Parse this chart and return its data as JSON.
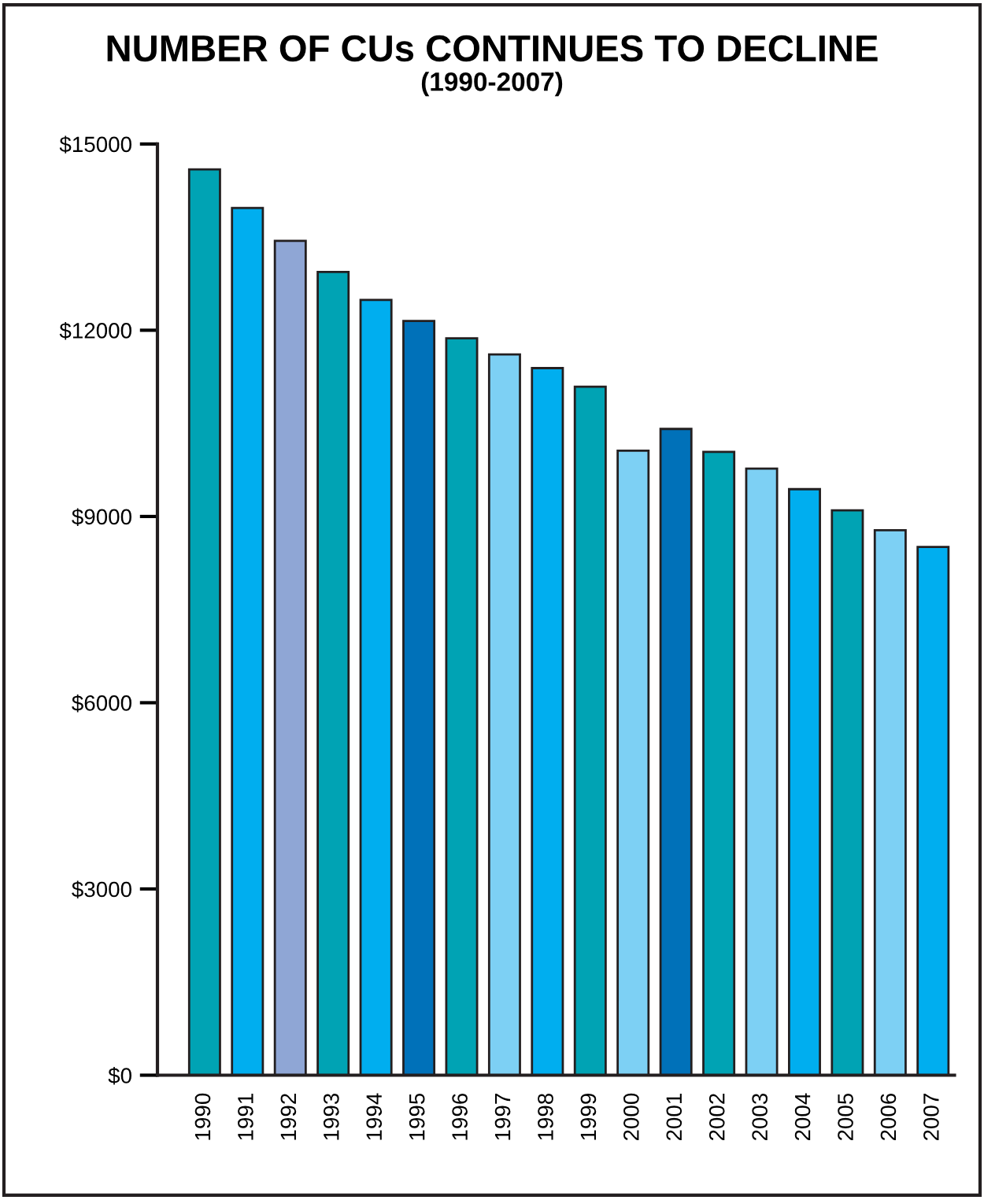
{
  "chart_data": {
    "type": "bar",
    "title": "NUMBER OF CUs CONTINUES TO DECLINE",
    "subtitle": "(1990-2007)",
    "categories": [
      "1990",
      "1991",
      "1992",
      "1993",
      "1994",
      "1995",
      "1996",
      "1997",
      "1998",
      "1999",
      "2000",
      "2001",
      "2002",
      "2003",
      "2004",
      "2005",
      "2006",
      "2007"
    ],
    "values": [
      14590,
      13970,
      13440,
      12940,
      12490,
      12150,
      11870,
      11610,
      11390,
      11090,
      10060,
      10410,
      10040,
      9770,
      9440,
      9100,
      8780,
      8510
    ],
    "colors": [
      "#00a3b4",
      "#00aeef",
      "#8fa6d5",
      "#00a3b4",
      "#00aeef",
      "#0071b9",
      "#00a3b4",
      "#7dd0f4",
      "#00aeef",
      "#00a3b4",
      "#7dd0f4",
      "#0071b9",
      "#00a3b4",
      "#7dd0f4",
      "#00aeef",
      "#00a3b4",
      "#7dd0f4",
      "#00aeef"
    ],
    "ylim": [
      0,
      15000
    ],
    "yticks": [
      {
        "value": 0,
        "label": "$0"
      },
      {
        "value": 3000,
        "label": "$3000"
      },
      {
        "value": 6000,
        "label": "$6000"
      },
      {
        "value": 9000,
        "label": "$9000"
      },
      {
        "value": 12000,
        "label": "$12000"
      },
      {
        "value": 15000,
        "label": "$15000"
      }
    ],
    "grid": false,
    "legend": false
  }
}
